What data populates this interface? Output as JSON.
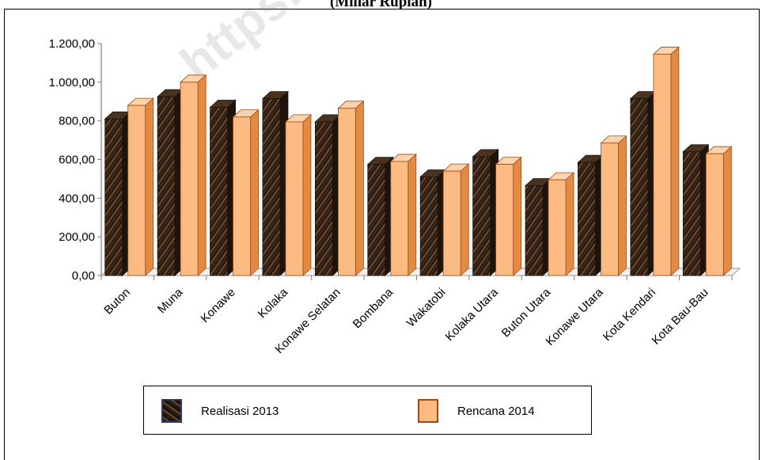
{
  "header": {
    "title_fragment": "(Miliar Rupiah)"
  },
  "watermark": "https://sult",
  "colors": {
    "realisasi": "#3b2716",
    "rencana": "#fdbb84",
    "rencana_border": "#9b4a12",
    "axis": "#7f7f7f"
  },
  "chart_data": {
    "type": "bar",
    "categories": [
      "Buton",
      "Muna",
      "Konawe",
      "Kolaka",
      "Konawe Selatan",
      "Bombana",
      "Wakatobi",
      "Kolaka Utara",
      "Buton Utara",
      "Konawe Utara",
      "Kota Kendari",
      "Kota Bau-Bau"
    ],
    "series": [
      {
        "name": "Realisasi 2013",
        "values": [
          810,
          925,
          870,
          915,
          795,
          575,
          510,
          615,
          465,
          585,
          915,
          640
        ]
      },
      {
        "name": "Rencana 2014",
        "values": [
          880,
          1000,
          820,
          795,
          865,
          590,
          540,
          575,
          495,
          685,
          1145,
          630
        ]
      }
    ],
    "title": "(Miliar Rupiah)",
    "xlabel": "",
    "ylabel": "",
    "ylim": [
      0,
      1200
    ],
    "yticks": [
      "0,00",
      "200,00",
      "400,00",
      "600,00",
      "800,00",
      "1.000,00",
      "1.200,00"
    ],
    "grid": false,
    "legend_position": "bottom"
  }
}
